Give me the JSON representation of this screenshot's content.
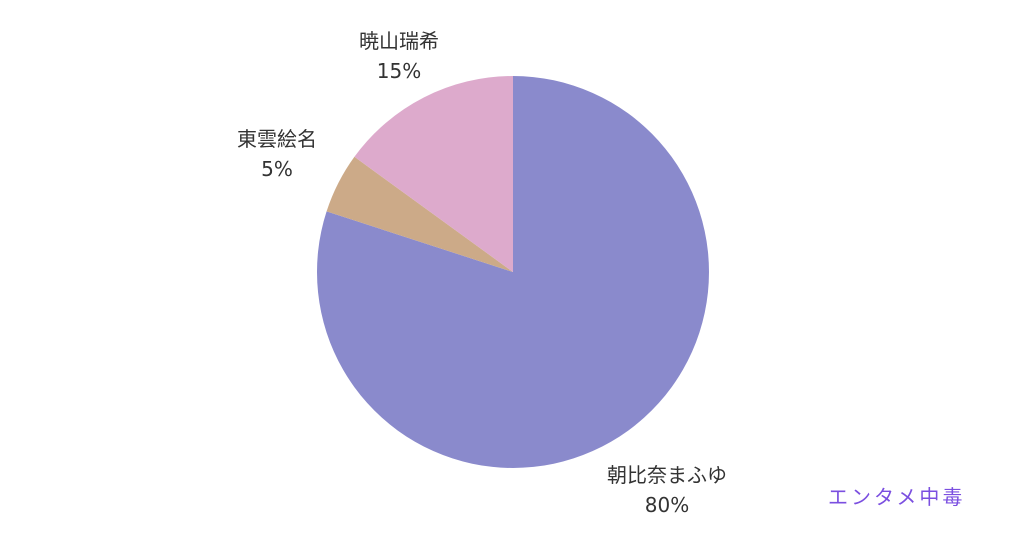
{
  "chart_data": {
    "type": "pie",
    "start_angle": "12 o'clock",
    "direction": "clockwise",
    "slices": [
      {
        "label": "朝比奈まふゆ",
        "value": 80,
        "value_label": "80%",
        "color": "#8a8acc"
      },
      {
        "label": "東雲絵名",
        "value": 5,
        "value_label": "5%",
        "color": "#ccaa88"
      },
      {
        "label": "暁山瑞希",
        "value": 15,
        "value_label": "15%",
        "color": "#ddaacc"
      }
    ],
    "legend": "none"
  },
  "watermark": {
    "text": "エンタメ中毒",
    "color": "#7b4fe0"
  }
}
